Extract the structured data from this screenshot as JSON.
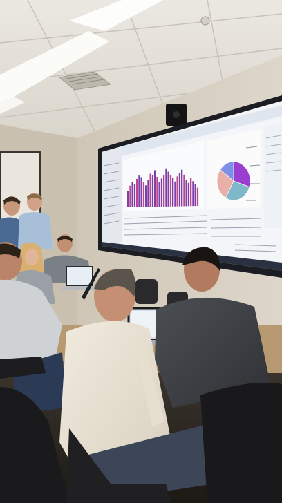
{
  "scene": {
    "description_free": true,
    "colors": {
      "ceiling": "#e6e3dc",
      "wall": "#d8d1c4",
      "screen_bezel": "#1b1d22",
      "screen_bg": "#f3f5f8",
      "bar_purple": "#7a3fa8",
      "bar_magenta": "#c0448e",
      "pie_purple": "#9a3fd0",
      "pie_teal": "#7fb8c8",
      "pie_pink": "#e8b0a8",
      "pie_blue": "#7d8fe6",
      "table": "#b89a72",
      "chair": "#1d1d1f"
    }
  },
  "chart_data": {
    "type": "bar",
    "values": [
      20,
      26,
      30,
      28,
      34,
      38,
      36,
      30,
      26,
      32,
      40,
      38,
      44,
      36,
      30,
      34,
      38,
      46,
      42,
      38,
      34,
      30,
      36,
      40,
      44,
      38,
      32,
      28,
      34,
      30,
      26,
      22
    ],
    "ylim": [
      0,
      50
    ]
  },
  "pie_data": {
    "type": "pie",
    "values": [
      30,
      28,
      27,
      15
    ]
  }
}
